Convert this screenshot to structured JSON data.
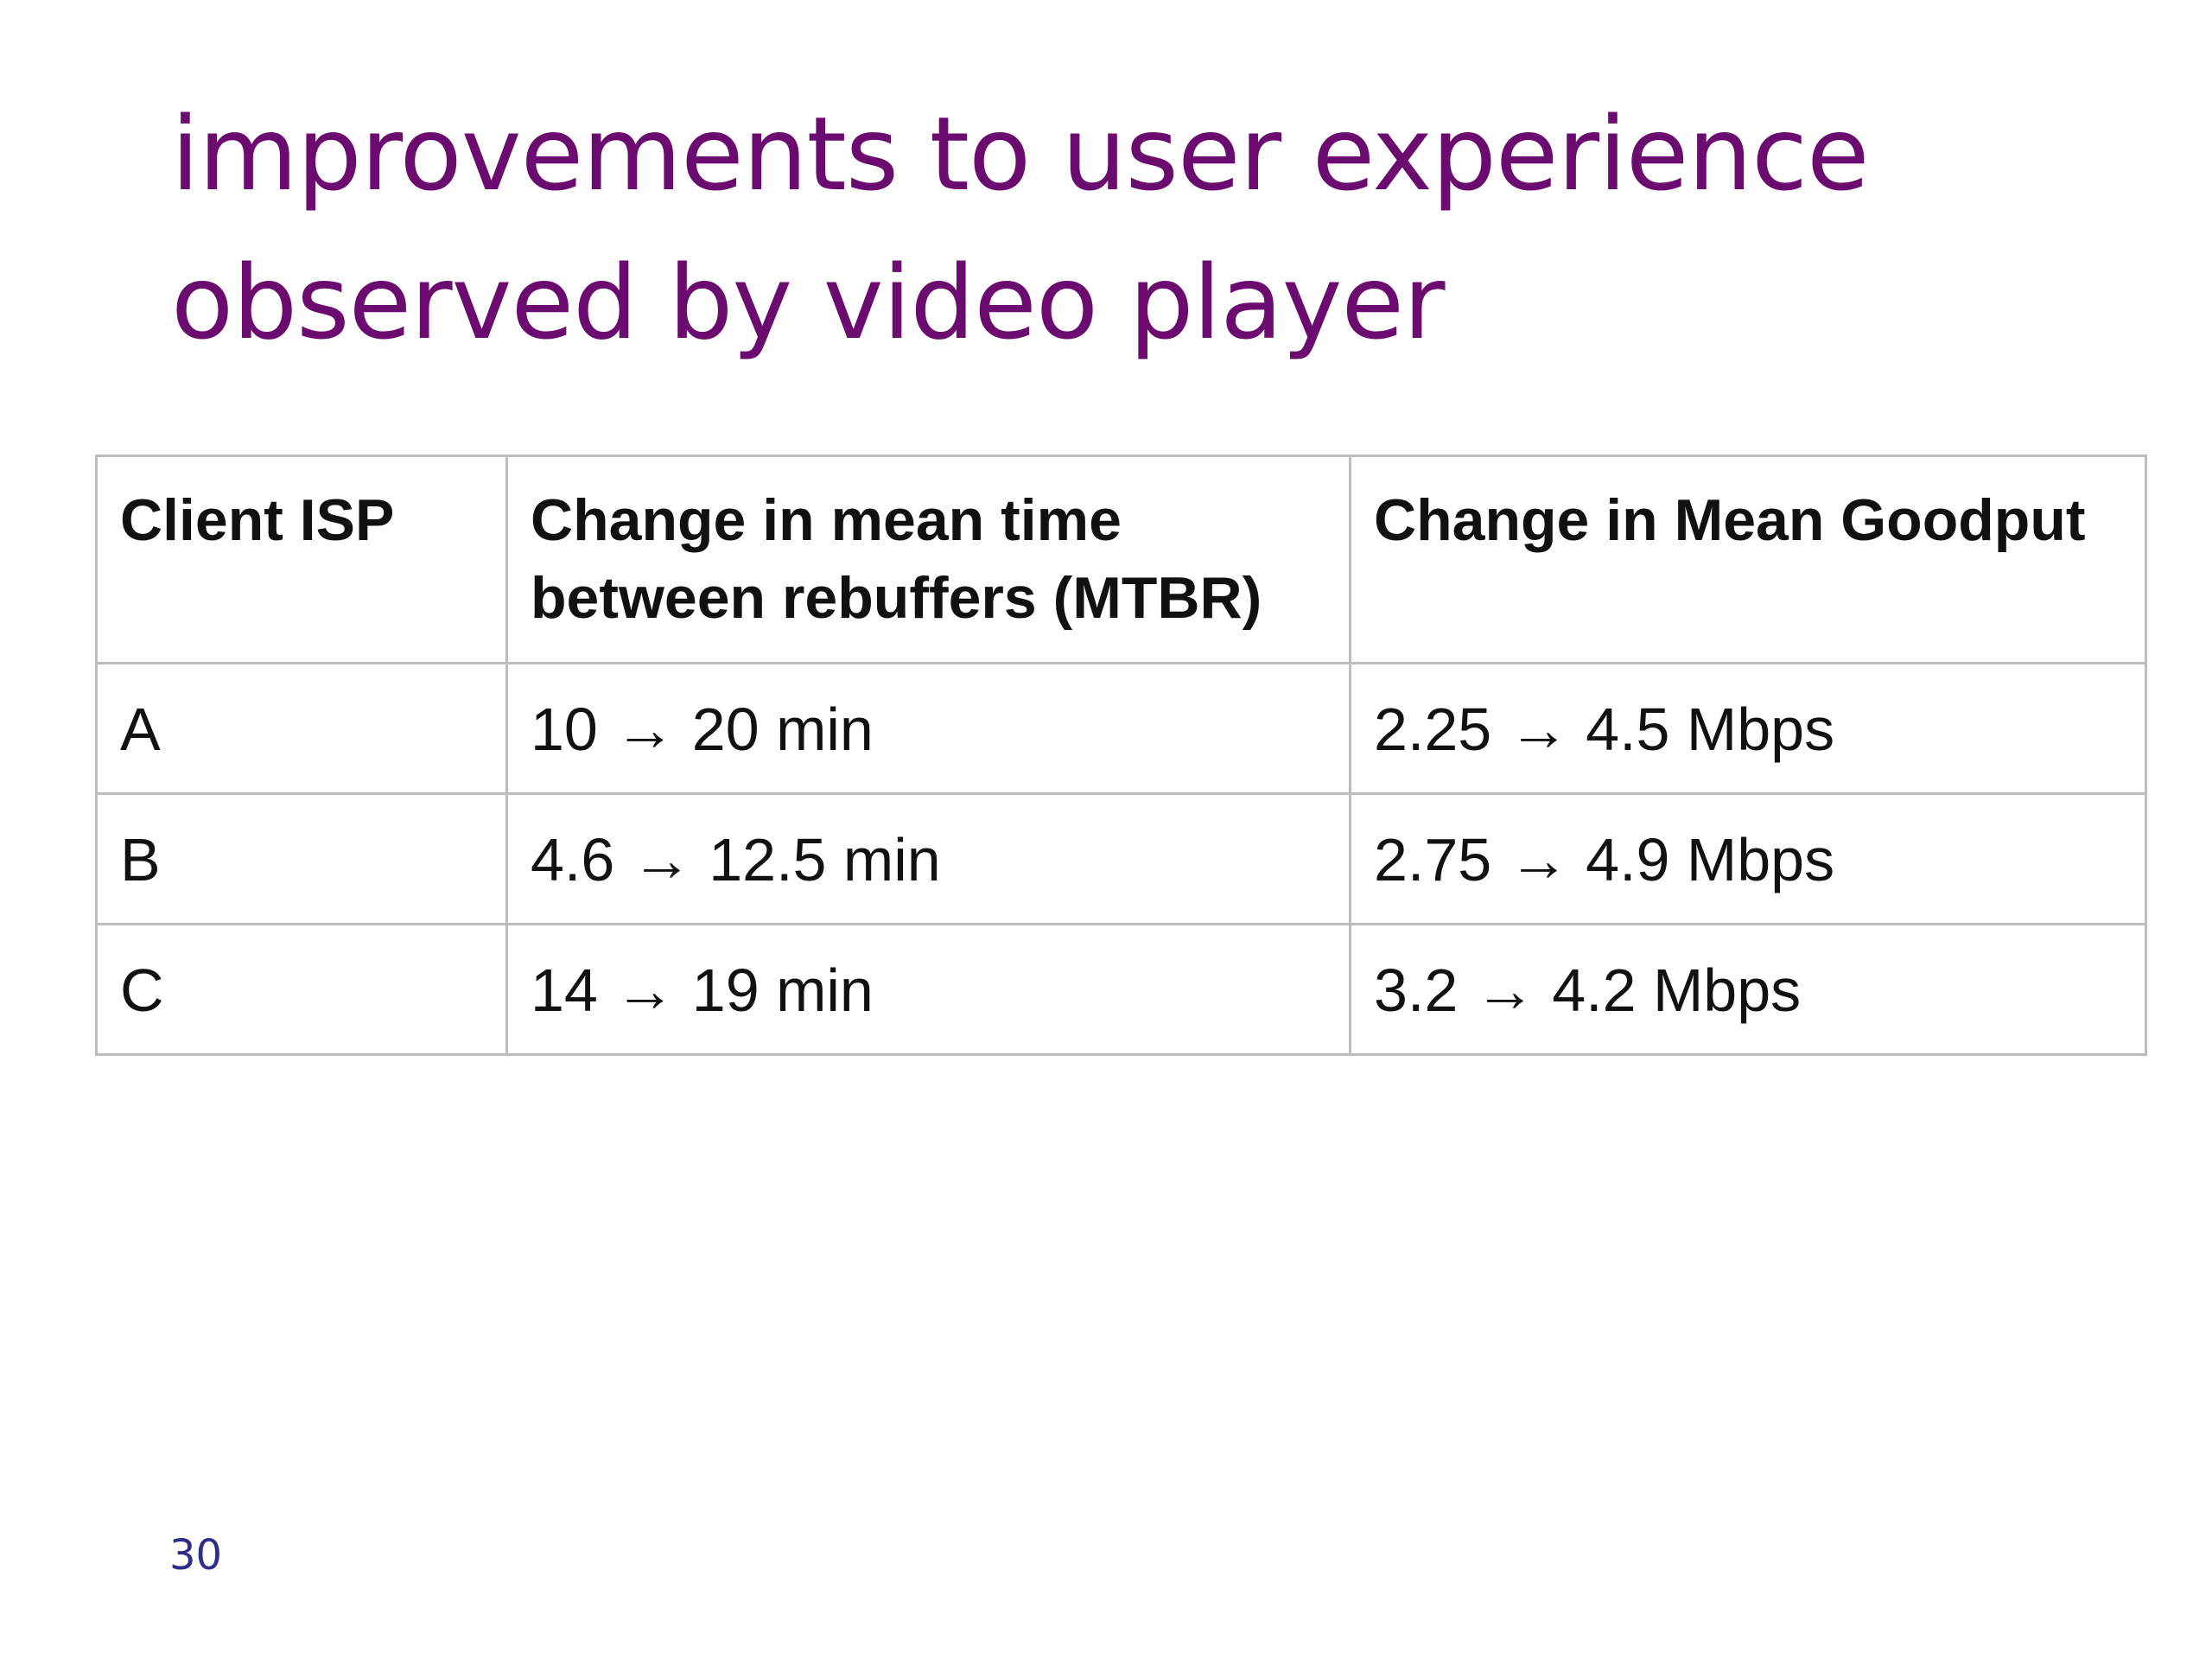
{
  "slide": {
    "title_line1": "improvements to user experience",
    "title_line2": "observed by video player",
    "page_number": "30"
  },
  "table": {
    "headers": [
      "Client ISP",
      "Change in mean time between rebuffers (MTBR)",
      "Change in Mean Goodput"
    ],
    "rows": [
      [
        "A",
        "10 → 20 min",
        "2.25 → 4.5 Mbps"
      ],
      [
        "B",
        "4.6 → 12.5 min",
        "2.75 → 4.9 Mbps"
      ],
      [
        "C",
        "14 → 19 min",
        "3.2 → 4.2 Mbps"
      ]
    ]
  },
  "colors": {
    "title": "#6b0b70",
    "page_number": "#2e2e8a",
    "table_border": "#bdbdbd"
  }
}
